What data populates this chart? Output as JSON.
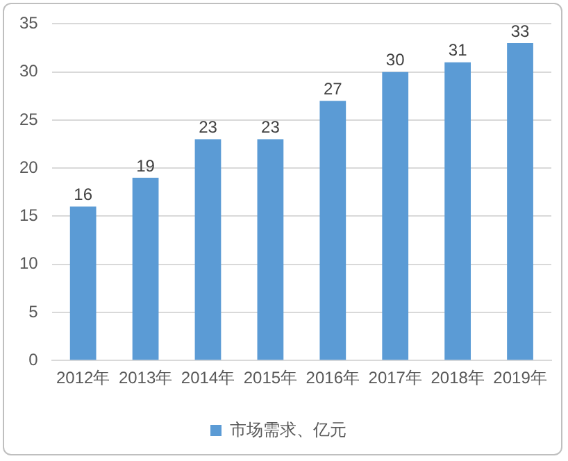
{
  "chart_data": {
    "type": "bar",
    "categories": [
      "2012年",
      "2013年",
      "2014年",
      "2015年",
      "2016年",
      "2017年",
      "2018年",
      "2019年"
    ],
    "series": [
      {
        "name": "市场需求、亿元",
        "color": "#5b9bd5",
        "values": [
          16,
          19,
          23,
          23,
          27,
          30,
          31,
          33
        ]
      }
    ],
    "ylim": [
      0,
      35
    ],
    "yticks": [
      0,
      5,
      10,
      15,
      20,
      25,
      30,
      35
    ],
    "grid": "y",
    "legend": "bottom",
    "data_labels": true
  }
}
